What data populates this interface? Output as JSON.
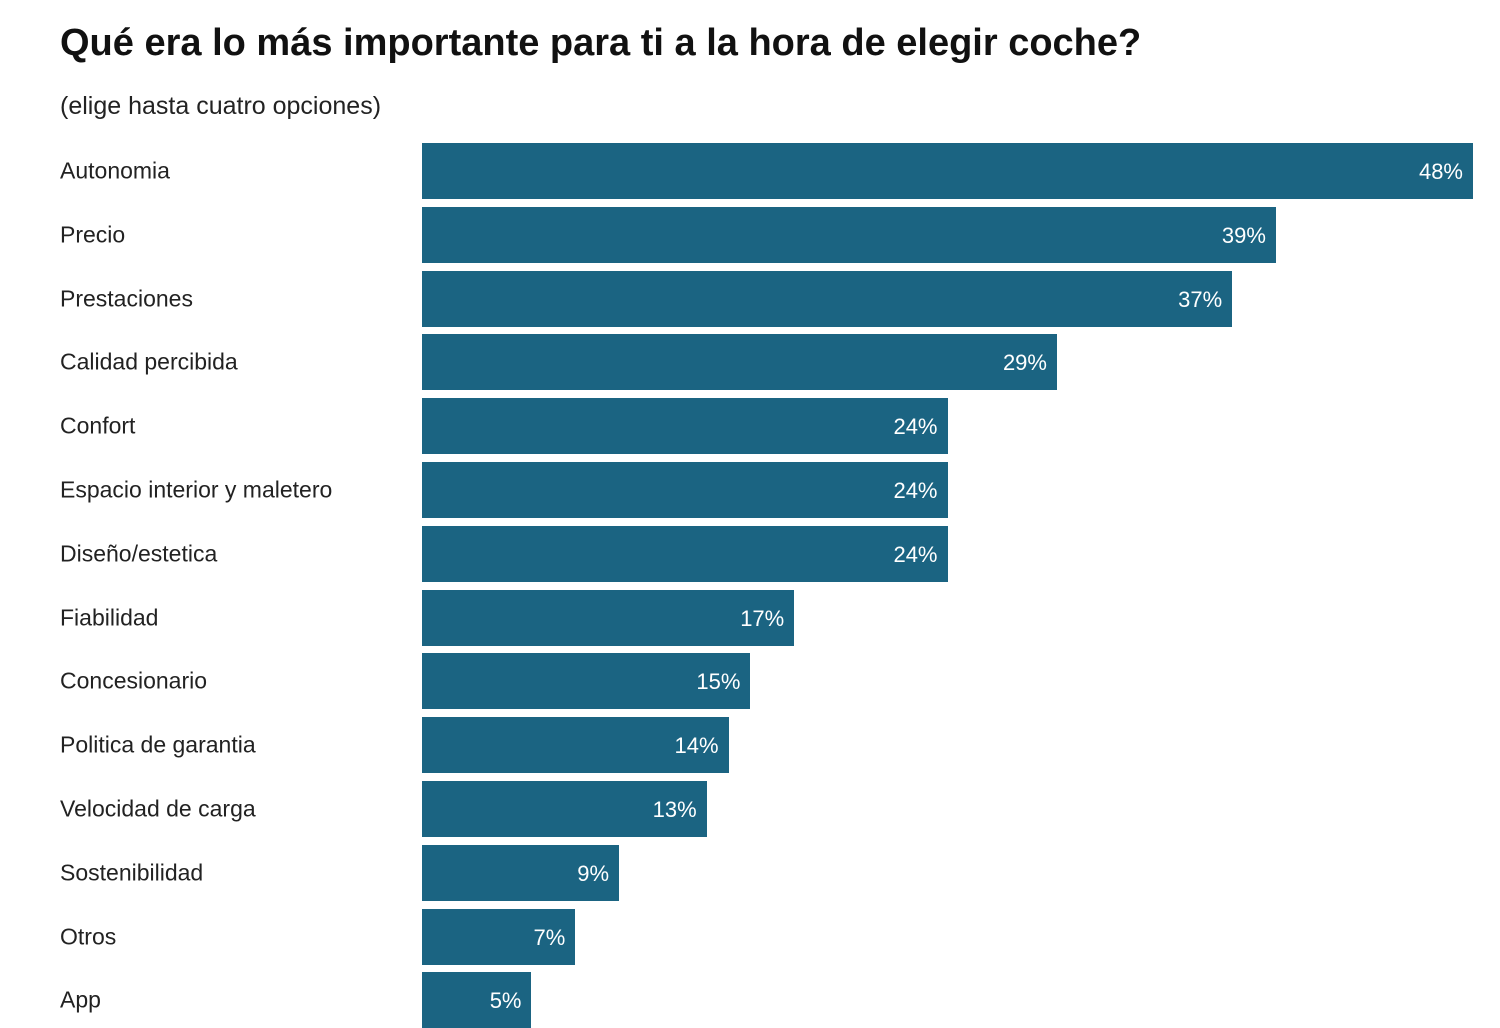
{
  "chart_data": {
    "type": "bar",
    "orientation": "horizontal",
    "title": "Qué era lo más importante para ti a la hora de elegir coche?",
    "subtitle": "(elige hasta cuatro opciones)",
    "categories": [
      "Autonomia",
      "Precio",
      "Prestaciones",
      "Calidad percibida",
      "Confort",
      "Espacio interior y maletero",
      "Diseño/estetica",
      "Fiabilidad",
      "Concesionario",
      "Politica de  garantia",
      "Velocidad de carga",
      "Sostenibilidad",
      "Otros",
      "App"
    ],
    "values": [
      48,
      39,
      37,
      29,
      24,
      24,
      24,
      17,
      15,
      14,
      13,
      9,
      7,
      5
    ],
    "value_labels": [
      "48%",
      "39%",
      "37%",
      "29%",
      "24%",
      "24%",
      "24%",
      "17%",
      "15%",
      "14%",
      "13%",
      "9%",
      "7%",
      "5%"
    ],
    "unit": "%",
    "xlim": [
      0,
      48
    ],
    "grid": false,
    "legend": "none",
    "bar_color": "#1b6482"
  }
}
